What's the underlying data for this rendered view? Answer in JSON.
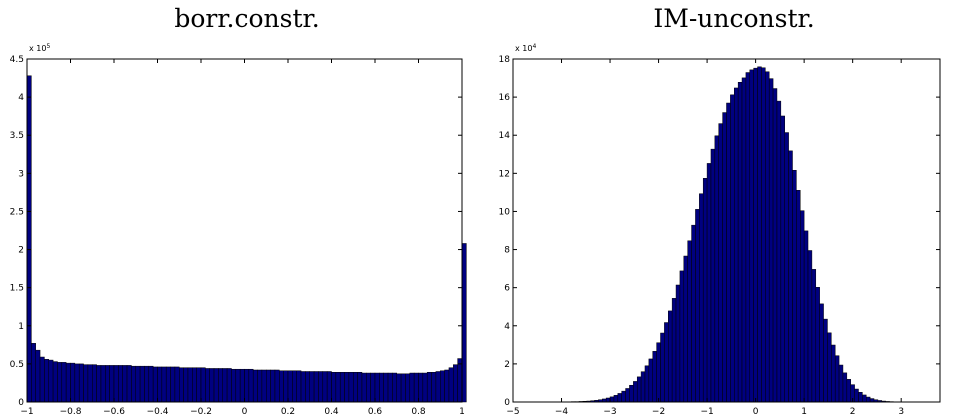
{
  "chart_data": [
    {
      "type": "bar",
      "title": "borr.constr.",
      "xlabel": "",
      "ylabel": "",
      "xlim": [
        -1,
        1
      ],
      "ylim": [
        0,
        4.5
      ],
      "y_scale_label": "x 10",
      "y_scale_exponent": "5",
      "xticks": [
        -1,
        -0.8,
        -0.6,
        -0.4,
        -0.2,
        0,
        0.2,
        0.4,
        0.6,
        0.8,
        1
      ],
      "xtick_labels": [
        "−1",
        "−0.8",
        "−0.6",
        "−0.4",
        "−0.2",
        "0",
        "0.2",
        "0.4",
        "0.6",
        "0.8",
        "1"
      ],
      "yticks": [
        0,
        0.5,
        1,
        1.5,
        2,
        2.5,
        3,
        3.5,
        4,
        4.5
      ],
      "ytick_labels": [
        "0",
        "0.5",
        "1",
        "1.5",
        "2",
        "2.5",
        "3",
        "3.5",
        "4",
        "4.5"
      ],
      "bin_start": -1,
      "bin_width": 0.02,
      "bar_color": "#000080",
      "values": [
        4.28,
        0.77,
        0.68,
        0.59,
        0.56,
        0.55,
        0.53,
        0.52,
        0.52,
        0.51,
        0.51,
        0.5,
        0.5,
        0.49,
        0.49,
        0.49,
        0.48,
        0.48,
        0.48,
        0.48,
        0.48,
        0.48,
        0.48,
        0.48,
        0.47,
        0.47,
        0.47,
        0.47,
        0.47,
        0.46,
        0.46,
        0.46,
        0.46,
        0.46,
        0.46,
        0.45,
        0.45,
        0.45,
        0.45,
        0.45,
        0.45,
        0.44,
        0.44,
        0.44,
        0.44,
        0.44,
        0.44,
        0.43,
        0.43,
        0.43,
        0.43,
        0.43,
        0.42,
        0.42,
        0.42,
        0.42,
        0.42,
        0.42,
        0.41,
        0.41,
        0.41,
        0.41,
        0.41,
        0.4,
        0.4,
        0.4,
        0.4,
        0.4,
        0.4,
        0.4,
        0.39,
        0.39,
        0.39,
        0.39,
        0.39,
        0.39,
        0.39,
        0.38,
        0.38,
        0.38,
        0.38,
        0.38,
        0.38,
        0.38,
        0.38,
        0.37,
        0.37,
        0.37,
        0.38,
        0.38,
        0.38,
        0.38,
        0.39,
        0.39,
        0.4,
        0.41,
        0.42,
        0.45,
        0.49,
        0.57,
        2.08
      ]
    },
    {
      "type": "bar",
      "title": "IM-unconstr.",
      "xlabel": "",
      "ylabel": "",
      "xlim": [
        -5,
        3.8
      ],
      "ylim": [
        0,
        18
      ],
      "y_scale_label": "x 10",
      "y_scale_exponent": "4",
      "xticks": [
        -5,
        -4,
        -3,
        -2,
        -1,
        0,
        1,
        2,
        3
      ],
      "xtick_labels": [
        "−5",
        "−4",
        "−3",
        "−2",
        "−1",
        "0",
        "1",
        "2",
        "3"
      ],
      "yticks": [
        0,
        2,
        4,
        6,
        8,
        10,
        12,
        14,
        16,
        18
      ],
      "ytick_labels": [
        "0",
        "2",
        "4",
        "6",
        "8",
        "10",
        "12",
        "14",
        "16",
        "18"
      ],
      "bin_start": -5,
      "bin_width": 0.08,
      "bar_color": "#000080",
      "values": [
        0.0,
        0.0,
        0.0,
        0.0,
        0.0,
        0.0,
        0.0,
        0.0,
        0.0,
        0.0,
        0.0,
        0.0,
        0.01,
        0.01,
        0.01,
        0.02,
        0.02,
        0.03,
        0.04,
        0.05,
        0.07,
        0.09,
        0.12,
        0.16,
        0.21,
        0.27,
        0.35,
        0.45,
        0.57,
        0.71,
        0.88,
        1.08,
        1.32,
        1.59,
        1.9,
        2.26,
        2.66,
        3.11,
        3.62,
        4.17,
        4.78,
        5.44,
        6.14,
        6.88,
        7.66,
        8.46,
        9.28,
        10.11,
        10.93,
        11.74,
        12.52,
        13.27,
        13.97,
        14.61,
        15.19,
        15.69,
        16.12,
        16.48,
        16.78,
        17.01,
        17.29,
        17.43,
        17.52,
        17.59,
        17.54,
        17.33,
        16.97,
        16.45,
        15.79,
        15.01,
        14.14,
        13.18,
        12.16,
        11.11,
        10.04,
        8.98,
        7.95,
        6.96,
        6.02,
        5.15,
        4.35,
        3.63,
        2.99,
        2.43,
        1.94,
        1.53,
        1.19,
        0.91,
        0.68,
        0.51,
        0.37,
        0.26,
        0.18,
        0.12,
        0.08,
        0.05,
        0.03,
        0.02,
        0.01,
        0.01,
        0.0,
        0.0,
        0.0,
        0.0,
        0.0,
        0.0,
        0.0,
        0.0,
        0.0,
        0.0
      ]
    }
  ]
}
